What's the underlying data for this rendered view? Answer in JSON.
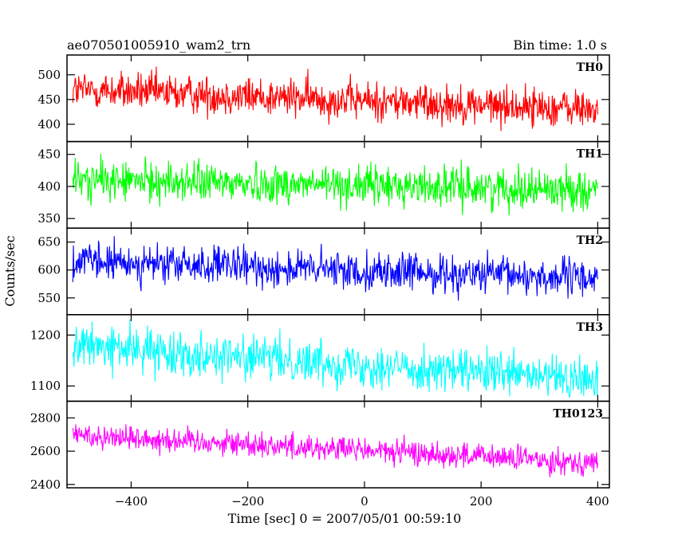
{
  "header": {
    "title": "ae070501005910_wam2_trn",
    "bin_time": "Bin time: 1.0 s"
  },
  "chart_data": {
    "type": "line",
    "xlabel": "Time [sec] 0 = 2007/05/01 00:59:10",
    "ylabel": "Counts/sec",
    "xlim": [
      -510,
      420
    ],
    "x_ticks": [
      -400,
      -200,
      0,
      200,
      400
    ],
    "x_range": [
      -500,
      400
    ],
    "bin_time_s": 1.0,
    "panels": [
      {
        "name": "TH0",
        "color": "#ff0000",
        "ylim": [
          365,
          540
        ],
        "y_ticks": [
          400,
          450,
          500
        ],
        "start_mean": 470,
        "end_mean": 430,
        "noise_amplitude": 28
      },
      {
        "name": "TH1",
        "color": "#00ff00",
        "ylim": [
          335,
          470
        ],
        "y_ticks": [
          350,
          400,
          450
        ],
        "start_mean": 410,
        "end_mean": 395,
        "noise_amplitude": 22
      },
      {
        "name": "TH2",
        "color": "#0000ff",
        "ylim": [
          520,
          675
        ],
        "y_ticks": [
          550,
          600,
          650
        ],
        "start_mean": 615,
        "end_mean": 585,
        "noise_amplitude": 24
      },
      {
        "name": "TH3",
        "color": "#00ffff",
        "ylim": [
          1070,
          1240
        ],
        "y_ticks": [
          1100,
          1200
        ],
        "start_mean": 1180,
        "end_mean": 1110,
        "noise_amplitude": 30
      },
      {
        "name": "TH0123",
        "color": "#ff00ff",
        "ylim": [
          2380,
          2900
        ],
        "y_ticks": [
          2400,
          2600,
          2800
        ],
        "start_mean": 2700,
        "end_mean": 2530,
        "noise_amplitude": 55
      }
    ]
  }
}
